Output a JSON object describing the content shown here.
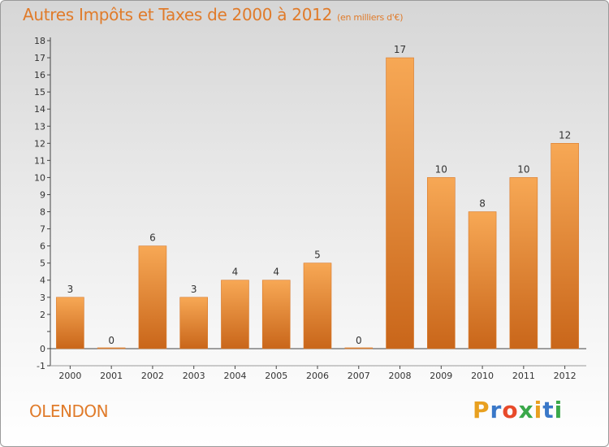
{
  "header": {
    "title": "Autres Impôts et Taxes de 2000 à 2012",
    "unit": "(en milliers d'€)"
  },
  "footer": {
    "commune": "OLENDON",
    "brand_letters": [
      "P",
      "r",
      "o",
      "x",
      "i",
      "t",
      "i"
    ],
    "brand_colors": [
      "#e8a020",
      "#3a78c8",
      "#e84a2a",
      "#3aa84a",
      "#e8a020",
      "#3a78c8",
      "#3aa84a"
    ]
  },
  "colors": {
    "accent": "#e07b2a",
    "bar_top": "#f7a855",
    "bar_bottom": "#c9661a"
  },
  "chart_data": {
    "type": "bar",
    "title": "Autres Impôts et Taxes de 2000 à 2012",
    "xlabel": "",
    "ylabel": "",
    "categories": [
      "2000",
      "2001",
      "2002",
      "2003",
      "2004",
      "2005",
      "2006",
      "2007",
      "2008",
      "2009",
      "2010",
      "2011",
      "2012"
    ],
    "values": [
      3,
      0,
      6,
      3,
      4,
      4,
      5,
      0,
      17,
      10,
      8,
      10,
      12
    ],
    "data_labels": [
      "3",
      "0",
      "6",
      "3",
      "4",
      "4",
      "5",
      "0",
      "17",
      "10",
      "8",
      "10",
      "12"
    ],
    "ylim": [
      -1,
      18
    ],
    "yticks": [
      -1,
      0,
      1,
      2,
      3,
      4,
      5,
      6,
      7,
      8,
      9,
      10,
      11,
      12,
      13,
      14,
      15,
      16,
      17,
      18
    ],
    "ytick_labels": [
      "-1",
      "0",
      "",
      "2",
      "3",
      "4",
      "5",
      "6",
      "7",
      "8",
      "9",
      "10",
      "11",
      "12",
      "13",
      "14",
      "15",
      "16",
      "17",
      "18"
    ],
    "grid": false,
    "legend": "none"
  }
}
